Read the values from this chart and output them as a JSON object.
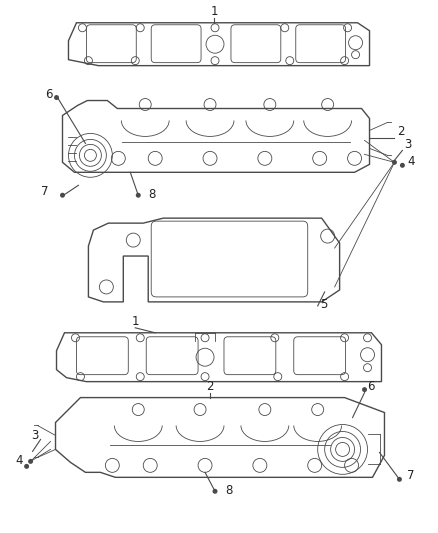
{
  "bg_color": "#ffffff",
  "line_color": "#4a4a4a",
  "label_color": "#222222",
  "fig_width": 4.38,
  "fig_height": 5.33,
  "dpi": 100
}
